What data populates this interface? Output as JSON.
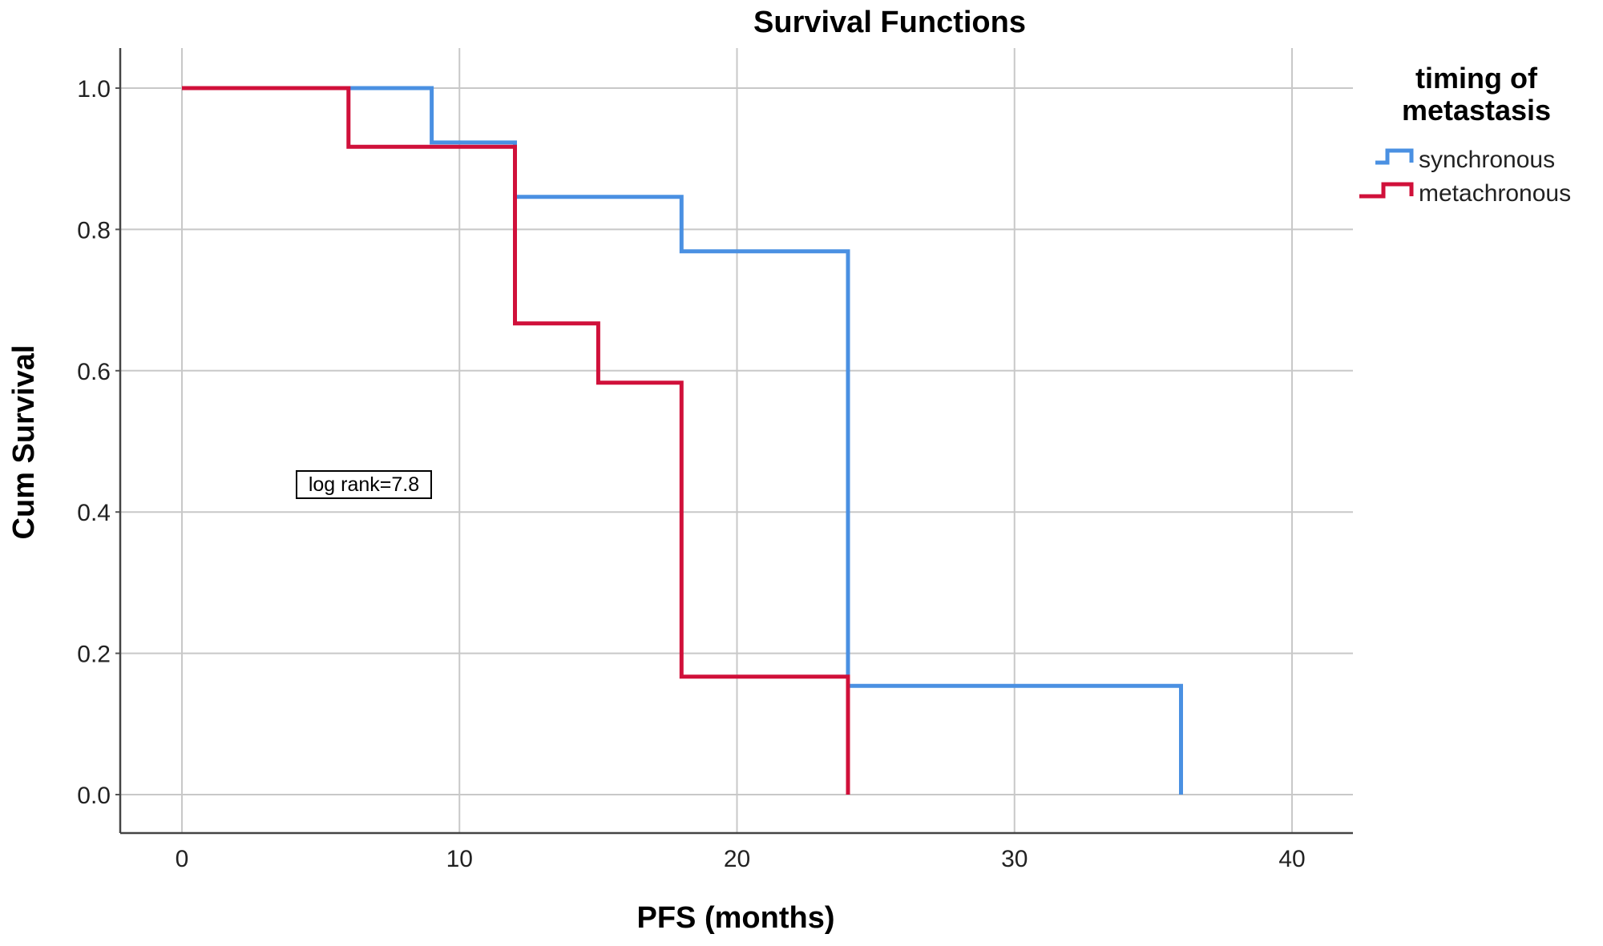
{
  "chart_data": {
    "type": "line",
    "step": true,
    "title": "Survival Functions",
    "xlabel": "PFS (months)",
    "ylabel": "Cum Survival",
    "xlim": [
      0,
      40
    ],
    "ylim": [
      0,
      1
    ],
    "x_ticks": [
      "0",
      "10",
      "20",
      "30",
      "40"
    ],
    "y_ticks": [
      "0.0",
      "0.2",
      "0.4",
      "0.6",
      "0.8",
      "1.0"
    ],
    "grid": true,
    "legend_title_lines": [
      "timing of",
      "metastasis"
    ],
    "legend_position": "top-right",
    "annotation": "log rank=7.8",
    "series": [
      {
        "name": "synchronous",
        "color": "#4a90e2",
        "points": [
          [
            0,
            1.0
          ],
          [
            9,
            1.0
          ],
          [
            9,
            0.923
          ],
          [
            12,
            0.923
          ],
          [
            12,
            0.846
          ],
          [
            18,
            0.846
          ],
          [
            18,
            0.769
          ],
          [
            24,
            0.769
          ],
          [
            24,
            0.154
          ],
          [
            36,
            0.154
          ],
          [
            36,
            0.0
          ]
        ]
      },
      {
        "name": "metachronous",
        "color": "#d0103a",
        "points": [
          [
            0,
            1.0
          ],
          [
            6,
            1.0
          ],
          [
            6,
            0.917
          ],
          [
            12,
            0.917
          ],
          [
            12,
            0.667
          ],
          [
            15,
            0.667
          ],
          [
            15,
            0.583
          ],
          [
            18,
            0.583
          ],
          [
            18,
            0.167
          ],
          [
            24,
            0.167
          ],
          [
            24,
            0.0
          ]
        ]
      }
    ]
  }
}
